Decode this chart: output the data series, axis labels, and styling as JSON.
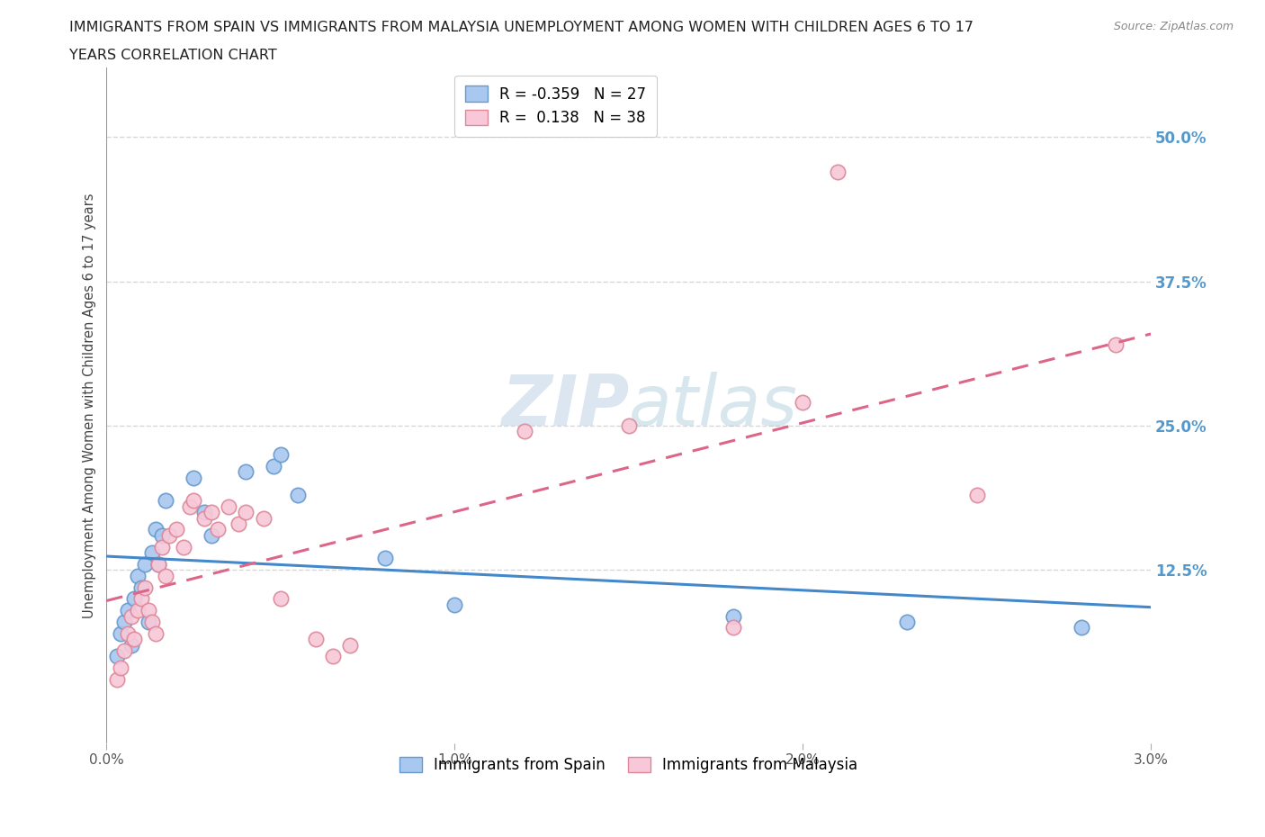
{
  "title_line1": "IMMIGRANTS FROM SPAIN VS IMMIGRANTS FROM MALAYSIA UNEMPLOYMENT AMONG WOMEN WITH CHILDREN AGES 6 TO 17",
  "title_line2": "YEARS CORRELATION CHART",
  "source_text": "Source: ZipAtlas.com",
  "ylabel": "Unemployment Among Women with Children Ages 6 to 17 years",
  "xlim": [
    0.0,
    0.03
  ],
  "ylim": [
    -0.025,
    0.56
  ],
  "xtick_labels": [
    "0.0%",
    "1.0%",
    "2.0%",
    "3.0%"
  ],
  "xtick_vals": [
    0.0,
    0.01,
    0.02,
    0.03
  ],
  "ytick_labels": [
    "12.5%",
    "25.0%",
    "37.5%",
    "50.0%"
  ],
  "ytick_vals": [
    0.125,
    0.25,
    0.375,
    0.5
  ],
  "background_color": "#ffffff",
  "plot_bg_color": "#ffffff",
  "grid_color": "#d8d8d8",
  "spain_color": "#a8c8f0",
  "spain_edge_color": "#6699cc",
  "malaysia_color": "#f8c8d8",
  "malaysia_edge_color": "#dd8899",
  "spain_R": -0.359,
  "spain_N": 27,
  "malaysia_R": 0.138,
  "malaysia_N": 38,
  "spain_line_color": "#4488cc",
  "malaysia_line_color": "#dd6688",
  "watermark_color": "#c8ddf0",
  "spain_x": [
    0.0003,
    0.0004,
    0.0005,
    0.0006,
    0.0007,
    0.0008,
    0.0009,
    0.001,
    0.0011,
    0.0012,
    0.0013,
    0.0014,
    0.0015,
    0.0016,
    0.0017,
    0.0025,
    0.0028,
    0.003,
    0.004,
    0.0048,
    0.005,
    0.0055,
    0.008,
    0.01,
    0.018,
    0.023,
    0.028
  ],
  "spain_y": [
    0.05,
    0.07,
    0.08,
    0.09,
    0.06,
    0.1,
    0.12,
    0.11,
    0.13,
    0.08,
    0.14,
    0.16,
    0.13,
    0.155,
    0.185,
    0.205,
    0.175,
    0.155,
    0.21,
    0.215,
    0.225,
    0.19,
    0.135,
    0.095,
    0.085,
    0.08,
    0.075
  ],
  "malaysia_x": [
    0.0003,
    0.0004,
    0.0005,
    0.0006,
    0.0007,
    0.0008,
    0.0009,
    0.001,
    0.0011,
    0.0012,
    0.0013,
    0.0014,
    0.0015,
    0.0016,
    0.0017,
    0.0018,
    0.002,
    0.0022,
    0.0024,
    0.0025,
    0.0028,
    0.003,
    0.0032,
    0.0035,
    0.0038,
    0.004,
    0.0045,
    0.005,
    0.006,
    0.0065,
    0.007,
    0.012,
    0.015,
    0.018,
    0.02,
    0.021,
    0.025,
    0.029
  ],
  "malaysia_y": [
    0.03,
    0.04,
    0.055,
    0.07,
    0.085,
    0.065,
    0.09,
    0.1,
    0.11,
    0.09,
    0.08,
    0.07,
    0.13,
    0.145,
    0.12,
    0.155,
    0.16,
    0.145,
    0.18,
    0.185,
    0.17,
    0.175,
    0.16,
    0.18,
    0.165,
    0.175,
    0.17,
    0.1,
    0.065,
    0.05,
    0.06,
    0.245,
    0.25,
    0.075,
    0.27,
    0.47,
    0.19,
    0.32
  ]
}
